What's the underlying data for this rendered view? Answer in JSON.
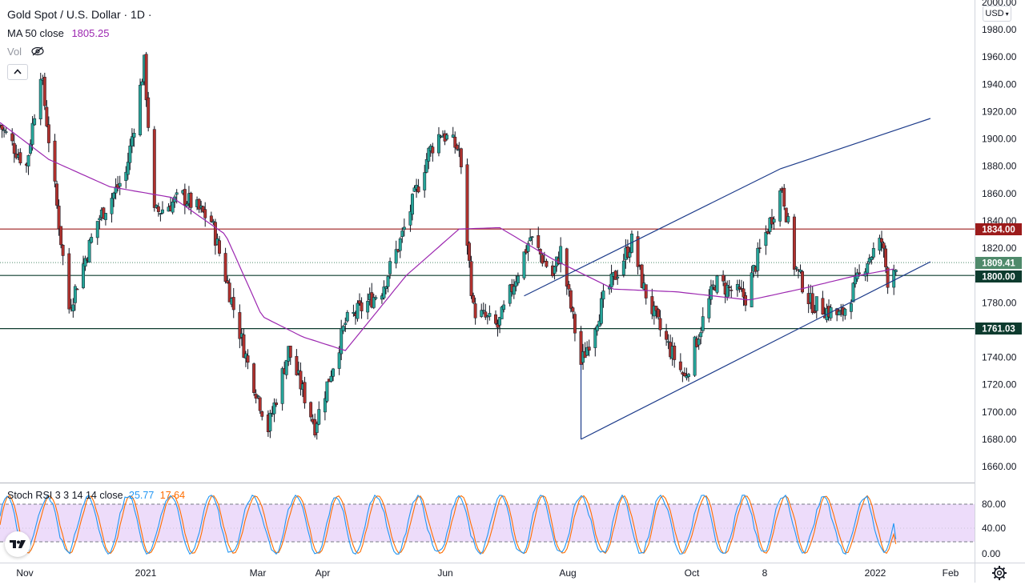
{
  "header": {
    "title": "Gold Spot / U.S. Dollar · 1D ·",
    "ma_label": "MA 50 close",
    "ma_value": "1805.25",
    "vol_label": "Vol",
    "collapse_icon": "chevron-up-icon",
    "vol_icon": "eye-hidden-icon"
  },
  "price_axis": {
    "currency": "USD",
    "ticks": [
      "2000.00",
      "1980.00",
      "1960.00",
      "1940.00",
      "1920.00",
      "1900.00",
      "1880.00",
      "1860.00",
      "1840.00",
      "1820.00",
      "1800.00",
      "1780.00",
      "1760.00",
      "1740.00",
      "1720.00",
      "1700.00",
      "1680.00",
      "1660.00"
    ]
  },
  "price_labels": {
    "resistance": "1834.00",
    "current": "1809.41",
    "support_1": "1800.00",
    "support_2": "1761.03"
  },
  "time_axis": [
    "Nov",
    "2021",
    "Mar",
    "Apr",
    "Jun",
    "Aug",
    "Oct",
    "8",
    "2022",
    "Feb"
  ],
  "stoch": {
    "label": "Stoch RSI 3 3 14 14 close",
    "k_value": "25.77",
    "d_value": "17.64",
    "ticks": [
      "80.00",
      "40.00",
      "0.00"
    ]
  },
  "colors": {
    "up": "#26a69a",
    "down": "#b0312d",
    "ma": "#9c27b0",
    "resistance": "#9c1b1b",
    "support": "#0d3b2e",
    "channel": "#1c3b8a",
    "current": "#4f8a6b",
    "stoch_k": "#2196f3",
    "stoch_d": "#ff6d00",
    "stoch_band": "#e1c4f7"
  },
  "chart_data": {
    "type": "candlestick",
    "title": "Gold Spot / U.S. Dollar · 1D",
    "x_range": [
      "2020-10-27",
      "2022-02-14"
    ],
    "ylim": [
      1650,
      2005
    ],
    "grid": false,
    "anchors": [
      [
        "2020-10-27",
        1910
      ],
      [
        "2020-11-09",
        1880
      ],
      [
        "2020-11-16",
        1950
      ],
      [
        "2020-11-30",
        1776
      ],
      [
        "2020-12-14",
        1840
      ],
      [
        "2020-12-28",
        1875
      ],
      [
        "2021-01-06",
        1955
      ],
      [
        "2021-01-11",
        1845
      ],
      [
        "2021-01-25",
        1858
      ],
      [
        "2021-02-08",
        1840
      ],
      [
        "2021-02-26",
        1735
      ],
      [
        "2021-03-08",
        1688
      ],
      [
        "2021-03-18",
        1745
      ],
      [
        "2021-03-31",
        1690
      ],
      [
        "2021-04-15",
        1765
      ],
      [
        "2021-05-03",
        1790
      ],
      [
        "2021-05-12",
        1825
      ],
      [
        "2021-05-26",
        1890
      ],
      [
        "2021-06-01",
        1905
      ],
      [
        "2021-06-10",
        1892
      ],
      [
        "2021-06-17",
        1775
      ],
      [
        "2021-06-29",
        1762
      ],
      [
        "2021-07-15",
        1828
      ],
      [
        "2021-07-26",
        1800
      ],
      [
        "2021-07-30",
        1818
      ],
      [
        "2021-08-09",
        1735
      ],
      [
        "2021-08-20",
        1782
      ],
      [
        "2021-09-03",
        1825
      ],
      [
        "2021-09-09",
        1790
      ],
      [
        "2021-09-17",
        1760
      ],
      [
        "2021-09-29",
        1725
      ],
      [
        "2021-10-14",
        1795
      ],
      [
        "2021-10-29",
        1784
      ],
      [
        "2021-11-05",
        1818
      ],
      [
        "2021-11-16",
        1865
      ],
      [
        "2021-11-22",
        1808
      ],
      [
        "2021-11-30",
        1780
      ],
      [
        "2021-12-15",
        1770
      ],
      [
        "2021-12-28",
        1812
      ],
      [
        "2022-01-04",
        1825
      ],
      [
        "2022-01-07",
        1797
      ],
      [
        "2022-01-11",
        1809
      ]
    ],
    "ma50": [
      [
        "2020-10-27",
        1912
      ],
      [
        "2020-11-20",
        1885
      ],
      [
        "2020-12-20",
        1865
      ],
      [
        "2021-01-20",
        1857
      ],
      [
        "2021-02-15",
        1830
      ],
      [
        "2021-03-05",
        1770
      ],
      [
        "2021-03-25",
        1755
      ],
      [
        "2021-04-15",
        1745
      ],
      [
        "2021-05-15",
        1800
      ],
      [
        "2021-06-10",
        1834
      ],
      [
        "2021-06-30",
        1835
      ],
      [
        "2021-07-26",
        1812
      ],
      [
        "2021-08-25",
        1790
      ],
      [
        "2021-09-25",
        1788
      ],
      [
        "2021-10-31",
        1782
      ],
      [
        "2021-11-25",
        1790
      ],
      [
        "2021-12-20",
        1799
      ],
      [
        "2022-01-11",
        1805
      ]
    ],
    "horizontal_levels": [
      1834.0,
      1800.0,
      1761.03
    ],
    "current_price": 1809.41,
    "trend_lines": [
      {
        "from": [
          "2021-07-12",
          1785
        ],
        "to": [
          "2021-11-15",
          1878
        ]
      },
      {
        "from": [
          "2021-11-15",
          1878
        ],
        "to": [
          "2022-01-28",
          1915
        ]
      },
      {
        "from": [
          "2021-08-09",
          1680
        ],
        "to": [
          "2022-01-28",
          1810
        ]
      },
      {
        "from": [
          "2021-08-09",
          1680
        ],
        "to": [
          "2021-08-09",
          1735
        ]
      }
    ],
    "stoch_rsi": {
      "k": 25.77,
      "d": 17.64,
      "upper": 80,
      "lower": 20,
      "ylim": [
        0,
        100
      ]
    }
  }
}
